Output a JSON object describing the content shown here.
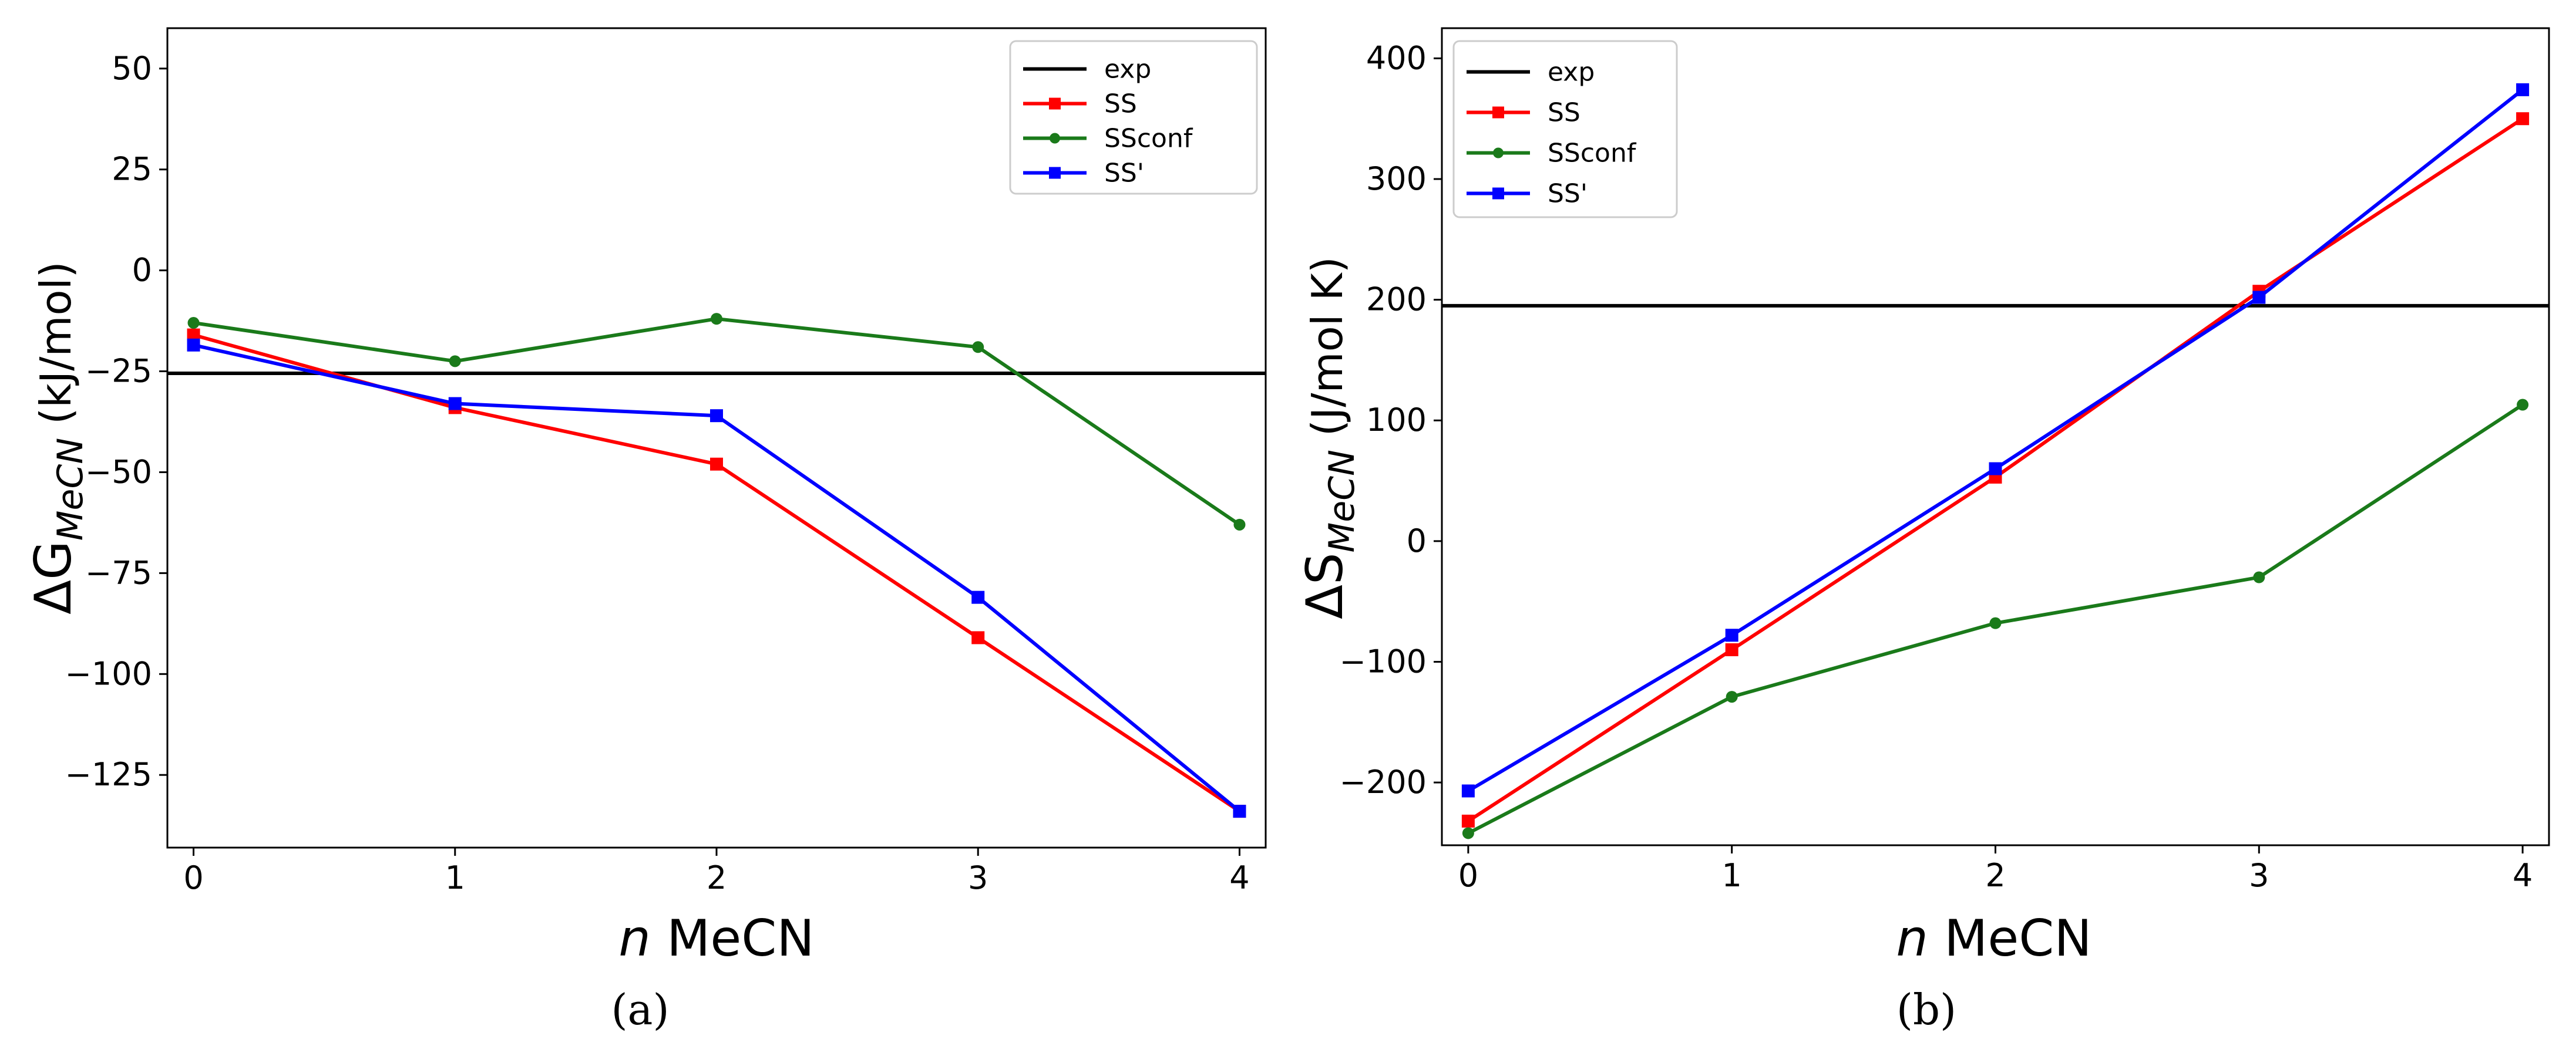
{
  "chart_data": [
    {
      "type": "line",
      "panel_label": "(a)",
      "xlabel_italic": "n",
      "xlabel_rest": " MeCN",
      "ylabel_prefix": "ΔG",
      "ylabel_sub": "MeCN",
      "ylabel_unit": "  (kJ/mol)",
      "x": [
        0,
        1,
        2,
        3,
        4
      ],
      "xlim": [
        -0.1,
        4.1
      ],
      "ylim": [
        -143,
        60
      ],
      "xticks": [
        0,
        1,
        2,
        3,
        4
      ],
      "yticks": [
        50,
        25,
        0,
        -25,
        -50,
        -75,
        -100,
        -125
      ],
      "legend_position": "top-right",
      "series": [
        {
          "name": "exp",
          "color": "#000000",
          "marker": "none",
          "hline": -25.5
        },
        {
          "name": "SS",
          "color": "#ff0000",
          "marker": "square",
          "values": [
            -16,
            -34,
            -48,
            -91,
            -134
          ]
        },
        {
          "name": "SSconf",
          "color": "#1a7a1a",
          "marker": "circle",
          "values": [
            -13,
            -22.5,
            -12,
            -19,
            -63
          ]
        },
        {
          "name": "SS'",
          "color": "#0000ff",
          "marker": "square",
          "values": [
            -18.5,
            -33,
            -36,
            -81,
            -134
          ]
        }
      ]
    },
    {
      "type": "line",
      "panel_label": "(b)",
      "xlabel_italic": "n",
      "xlabel_rest": " MeCN",
      "ylabel_prefix": "ΔS",
      "ylabel_sub": "MeCN",
      "ylabel_unit": "  (J/mol K)",
      "x": [
        0,
        1,
        2,
        3,
        4
      ],
      "xlim": [
        -0.1,
        4.1
      ],
      "ylim": [
        -252,
        425
      ],
      "xticks": [
        0,
        1,
        2,
        3,
        4
      ],
      "yticks": [
        400,
        300,
        200,
        100,
        0,
        -100,
        -200
      ],
      "legend_position": "top-left",
      "series": [
        {
          "name": "exp",
          "color": "#000000",
          "marker": "none",
          "hline": 195
        },
        {
          "name": "SS",
          "color": "#ff0000",
          "marker": "square",
          "values": [
            -232,
            -90,
            53,
            207,
            350
          ]
        },
        {
          "name": "SSconf",
          "color": "#1a7a1a",
          "marker": "circle",
          "values": [
            -242,
            -129,
            -68,
            -30,
            113
          ]
        },
        {
          "name": "SS'",
          "color": "#0000ff",
          "marker": "square",
          "values": [
            -207,
            -78,
            60,
            202,
            374
          ]
        }
      ]
    }
  ]
}
